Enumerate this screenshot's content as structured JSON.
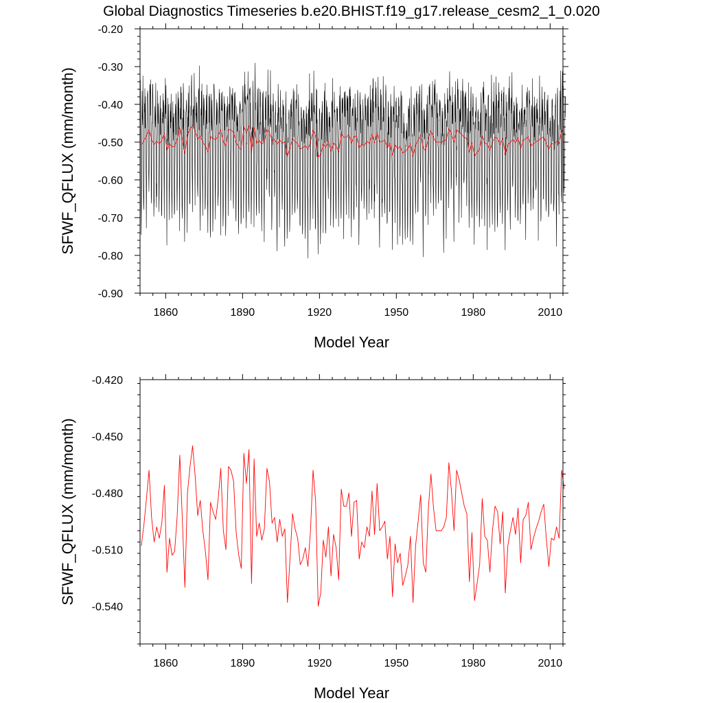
{
  "title": "Global Diagnostics Timeseries b.e20.BHIST.f19_g17.release_cesm2_1_0.020",
  "colors": {
    "monthly": "#000000",
    "annual": "#ff0000",
    "axis": "#000000"
  },
  "chart_data": [
    {
      "type": "line",
      "id": "monthly",
      "xlabel": "Model Year",
      "ylabel": "SFWF_QFLUX (mm/month)",
      "xlim": [
        1850,
        2015
      ],
      "ylim": [
        -0.9,
        -0.2
      ],
      "x_ticks": [
        "1860",
        "1890",
        "1920",
        "1950",
        "1980",
        "2010"
      ],
      "y_ticks": [
        "-0.20",
        "-0.30",
        "-0.40",
        "-0.50",
        "-0.60",
        "-0.70",
        "-0.80",
        "-0.90"
      ],
      "series": [
        {
          "name": "monthly",
          "color": "#000000",
          "x_start": 1850.04,
          "x_step": 0.08333,
          "monthly_climatology": [
            -0.42,
            -0.38,
            -0.45,
            -0.55,
            -0.66,
            -0.68,
            -0.58,
            -0.48,
            -0.43,
            -0.4,
            -0.39,
            -0.41
          ],
          "note": "monthly values oscillate roughly between -0.82 and -0.28 around the annual mean"
        },
        {
          "name": "annual",
          "color": "#ff0000",
          "ref": "annual"
        }
      ]
    },
    {
      "type": "line",
      "id": "annual",
      "xlabel": "Model Year",
      "ylabel": "SFWF_QFLUX (mm/month)",
      "xlim": [
        1850,
        2015
      ],
      "ylim": [
        -0.56,
        -0.42
      ],
      "x_ticks": [
        "1860",
        "1890",
        "1920",
        "1950",
        "1980",
        "2010"
      ],
      "y_ticks": [
        "-0.420",
        "-0.450",
        "-0.480",
        "-0.510",
        "-0.540"
      ],
      "series": [
        {
          "name": "annual",
          "color": "#ff0000",
          "x_start": 1850,
          "x_step": 1,
          "values": [
            -0.508,
            -0.497,
            -0.483,
            -0.468,
            -0.493,
            -0.506,
            -0.498,
            -0.504,
            -0.496,
            -0.476,
            -0.522,
            -0.504,
            -0.513,
            -0.511,
            -0.492,
            -0.46,
            -0.494,
            -0.53,
            -0.48,
            -0.466,
            -0.455,
            -0.471,
            -0.492,
            -0.484,
            -0.5,
            -0.511,
            -0.526,
            -0.485,
            -0.49,
            -0.494,
            -0.483,
            -0.467,
            -0.5,
            -0.51,
            -0.466,
            -0.468,
            -0.474,
            -0.501,
            -0.513,
            -0.52,
            -0.459,
            -0.475,
            -0.457,
            -0.528,
            -0.462,
            -0.503,
            -0.496,
            -0.505,
            -0.499,
            -0.467,
            -0.474,
            -0.496,
            -0.493,
            -0.506,
            -0.494,
            -0.503,
            -0.499,
            -0.538,
            -0.515,
            -0.491,
            -0.499,
            -0.504,
            -0.518,
            -0.515,
            -0.509,
            -0.519,
            -0.5,
            -0.468,
            -0.484,
            -0.54,
            -0.533,
            -0.505,
            -0.514,
            -0.498,
            -0.524,
            -0.502,
            -0.509,
            -0.526,
            -0.478,
            -0.487,
            -0.487,
            -0.48,
            -0.503,
            -0.485,
            -0.484,
            -0.515,
            -0.506,
            -0.509,
            -0.498,
            -0.503,
            -0.479,
            -0.502,
            -0.475,
            -0.5,
            -0.498,
            -0.495,
            -0.515,
            -0.503,
            -0.535,
            -0.507,
            -0.517,
            -0.512,
            -0.529,
            -0.524,
            -0.518,
            -0.503,
            -0.538,
            -0.508,
            -0.495,
            -0.481,
            -0.517,
            -0.522,
            -0.488,
            -0.47,
            -0.488,
            -0.5,
            -0.5,
            -0.5,
            -0.498,
            -0.493,
            -0.464,
            -0.479,
            -0.5,
            -0.468,
            -0.473,
            -0.48,
            -0.487,
            -0.491,
            -0.527,
            -0.501,
            -0.537,
            -0.528,
            -0.518,
            -0.483,
            -0.503,
            -0.505,
            -0.522,
            -0.5,
            -0.487,
            -0.49,
            -0.507,
            -0.49,
            -0.533,
            -0.508,
            -0.5,
            -0.493,
            -0.502,
            -0.488,
            -0.517,
            -0.494,
            -0.492,
            -0.485,
            -0.51,
            -0.504,
            -0.499,
            -0.495,
            -0.49,
            -0.486,
            -0.504,
            -0.519,
            -0.504,
            -0.505,
            -0.498,
            -0.504,
            -0.468,
            -0.478
          ]
        }
      ]
    }
  ]
}
